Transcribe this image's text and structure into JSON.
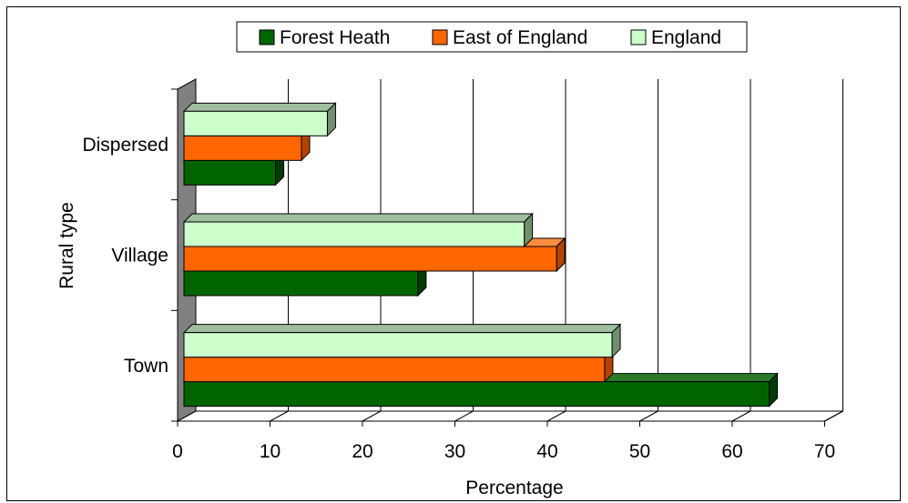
{
  "chart_data": {
    "type": "bar",
    "orientation": "horizontal",
    "three_d": true,
    "categories": [
      "Town",
      "Village",
      "Dispersed"
    ],
    "series": [
      {
        "name": "Forest Heath",
        "values": [
          64,
          26,
          10.6
        ],
        "color": "#006400",
        "side_color": "#003c00",
        "top_color": "#2a7a2a"
      },
      {
        "name": "East of England",
        "values": [
          46.2,
          41,
          13.4
        ],
        "color": "#ff6600",
        "side_color": "#b34400",
        "top_color": "#ff8c40"
      },
      {
        "name": "England",
        "values": [
          47,
          37.5,
          16.2
        ],
        "color": "#ccffcc",
        "side_color": "#6f8f6f",
        "top_color": "#9fbf9f"
      }
    ],
    "xlabel": "Percentage",
    "ylabel": "Rural type",
    "xlim": [
      0,
      70
    ],
    "xticks": [
      "0",
      "10",
      "20",
      "30",
      "40",
      "50",
      "60",
      "70"
    ],
    "grid": true,
    "legend": "top-center"
  }
}
